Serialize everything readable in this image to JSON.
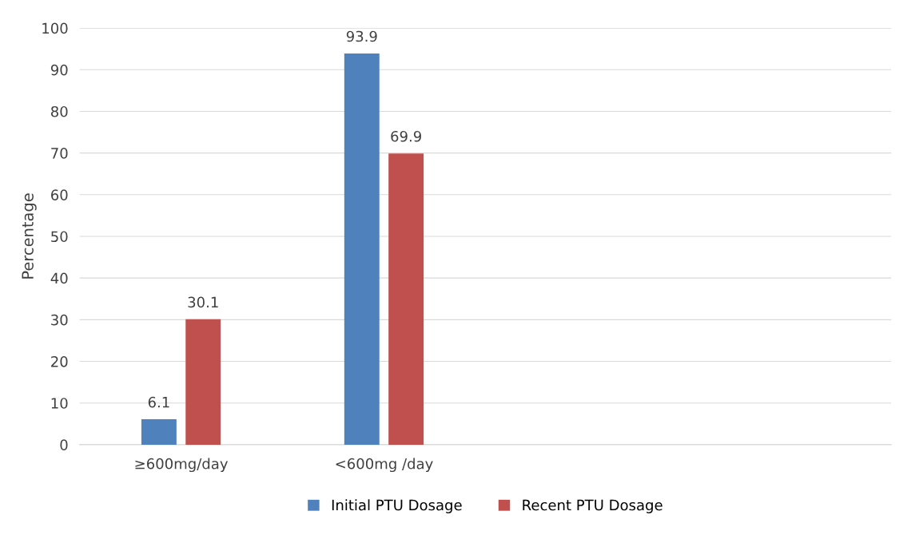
{
  "chart_data": {
    "type": "bar",
    "ylabel": "Percentage",
    "categories": [
      "≥600mg/day",
      "<600mg /day",
      null,
      null
    ],
    "series": [
      {
        "name": "Initial PTU Dosage",
        "color": "#4f81bd",
        "values": [
          6.1,
          93.9,
          null,
          null
        ]
      },
      {
        "name": "Recent PTU Dosage",
        "color": "#c0504d",
        "values": [
          30.1,
          69.9,
          null,
          null
        ]
      }
    ],
    "ylim": [
      0,
      100
    ],
    "yticks": [
      0,
      10,
      20,
      30,
      40,
      50,
      60,
      70,
      80,
      90,
      100
    ],
    "grid": "y",
    "legend": "bottom",
    "data_labels": true
  }
}
